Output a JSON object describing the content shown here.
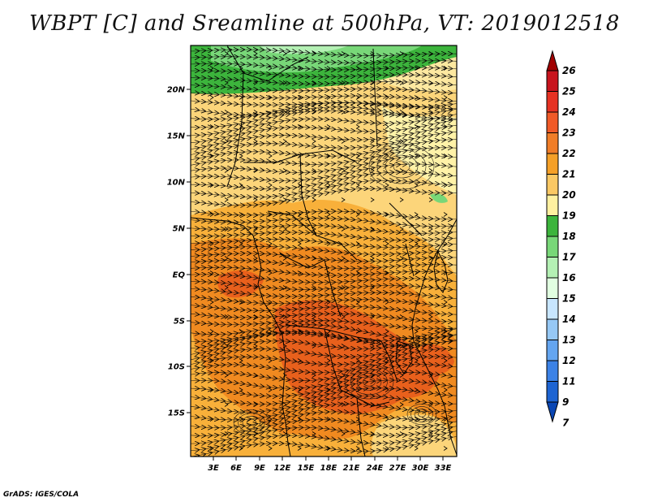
{
  "title": "WBPT [C] and Sreamline at 500hPa, VT: 2019012518",
  "footer": "GrADS: IGES/COLA",
  "map": {
    "lat_ticks": [
      "20N",
      "15N",
      "10N",
      "5N",
      "EQ",
      "5S",
      "10S",
      "15S"
    ],
    "lon_ticks": [
      "3E",
      "6E",
      "9E",
      "12E",
      "15E",
      "18E",
      "21E",
      "24E",
      "27E",
      "30E",
      "33E"
    ],
    "fill_colors": {
      "green_dark": "#3cb43c",
      "green_mid": "#78d778",
      "green_light": "#b4f0b4",
      "pale": "#fff2a8",
      "yellow": "#fcd57a",
      "orange_light": "#f8b03a",
      "orange": "#f08a20",
      "orange_red": "#e8601c",
      "red": "#d82020"
    }
  },
  "colorbar": {
    "labels": [
      "26",
      "25",
      "24",
      "23",
      "22",
      "21",
      "20",
      "19",
      "18",
      "17",
      "16",
      "15",
      "14",
      "13",
      "12",
      "11",
      "9",
      "7"
    ],
    "colors": [
      "#a00000",
      "#c8141e",
      "#e63223",
      "#f05a28",
      "#f07d28",
      "#f5a028",
      "#fac864",
      "#fff0a0",
      "#3cb43c",
      "#78d778",
      "#b4f0b4",
      "#e1ffe1",
      "#c8e6ff",
      "#96c8f5",
      "#64a5f0",
      "#3c82e6",
      "#1e64d2",
      "#0a46b4"
    ]
  }
}
